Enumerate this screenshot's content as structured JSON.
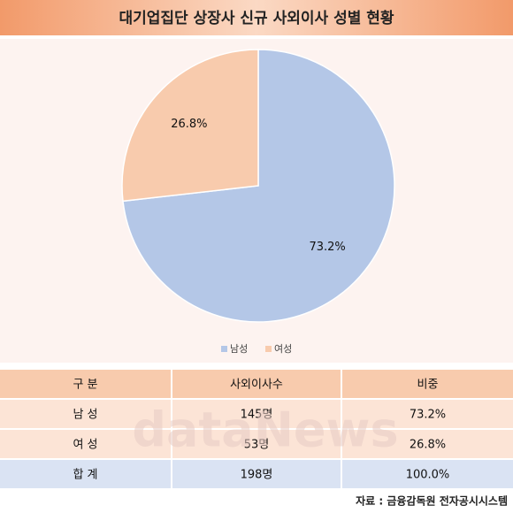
{
  "chart_data": {
    "type": "pie",
    "title": "대기업집단 상장사 신규 사외이사 성별 현황",
    "categories": [
      "남성",
      "여성"
    ],
    "values": [
      73.2,
      26.8
    ],
    "value_labels": [
      "73.2%",
      "26.8%"
    ],
    "colors": [
      "#b4c7e7",
      "#f8cbad"
    ],
    "legend": "bottom"
  },
  "table": {
    "header": [
      "구 분",
      "사외이사수",
      "비중"
    ],
    "rows": [
      [
        "남 성",
        "145명",
        "73.2%"
      ],
      [
        "여 성",
        "53명",
        "26.8%"
      ],
      [
        "합 계",
        "198명",
        "100.0%"
      ]
    ]
  },
  "watermark": "dataNews",
  "source": "자료 : 금융감독원 전자공시시스템"
}
